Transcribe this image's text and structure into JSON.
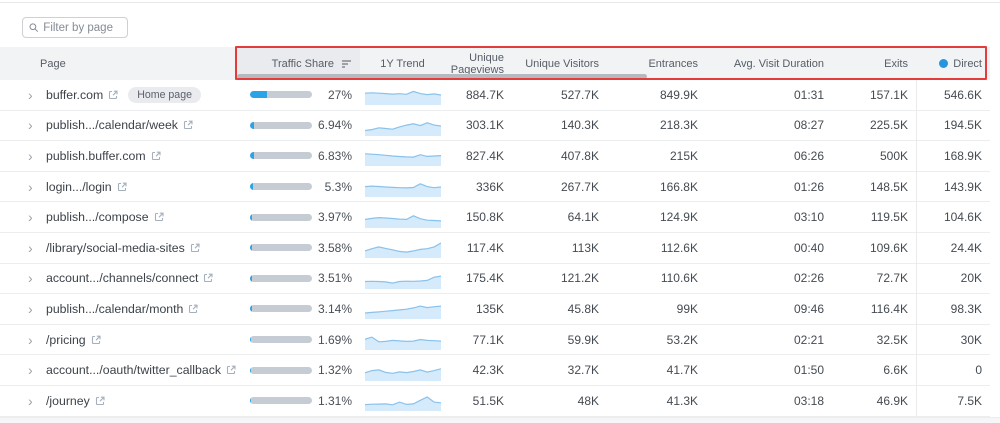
{
  "filter": {
    "placeholder": "Filter by page"
  },
  "columns": {
    "page": "Page",
    "traffic_share": "Traffic Share",
    "trend": "1Y Trend",
    "unique_pageviews": "Unique Pageviews",
    "unique_visitors": "Unique Visitors",
    "entrances": "Entrances",
    "avg_visit_duration": "Avg. Visit Duration",
    "exits": "Exits",
    "direct": "Direct"
  },
  "colors": {
    "accent_blue": "#2aa3e8",
    "direct_dot": "#2596dd",
    "highlight_red": "#e63b3b",
    "bar_track": "#c6ccd4",
    "spark_area": "#d5eafa",
    "spark_line": "#8ac2ec"
  },
  "icons": {
    "search": "search-icon",
    "sort": "sort-icon",
    "external_link": "external-link-icon",
    "chevron": "chevron-right-icon"
  },
  "rows": [
    {
      "page": "buffer.com",
      "badge": "Home page",
      "traffic_share_pct": "27%",
      "traffic_share_value": 27,
      "trend": [
        60,
        62,
        60,
        58,
        55,
        57,
        54,
        70,
        58,
        52,
        56,
        50
      ],
      "unique_pageviews": "884.7K",
      "unique_visitors": "527.7K",
      "entrances": "849.9K",
      "avg_visit_duration": "01:31",
      "exits": "157.1K",
      "direct": "546.6K"
    },
    {
      "page": "publish.../calendar/week",
      "badge": null,
      "traffic_share_pct": "6.94%",
      "traffic_share_value": 6.94,
      "trend": [
        25,
        30,
        40,
        36,
        32,
        45,
        55,
        62,
        52,
        68,
        55,
        50
      ],
      "unique_pageviews": "303.1K",
      "unique_visitors": "140.3K",
      "entrances": "218.3K",
      "avg_visit_duration": "08:27",
      "exits": "225.5K",
      "direct": "194.5K"
    },
    {
      "page": "publish.buffer.com",
      "badge": null,
      "traffic_share_pct": "6.83%",
      "traffic_share_value": 6.83,
      "trend": [
        62,
        60,
        57,
        54,
        50,
        47,
        45,
        44,
        57,
        48,
        50,
        52
      ],
      "unique_pageviews": "827.4K",
      "unique_visitors": "407.8K",
      "entrances": "215K",
      "avg_visit_duration": "06:26",
      "exits": "500K",
      "direct": "168.9K"
    },
    {
      "page": "login.../login",
      "badge": null,
      "traffic_share_pct": "5.3%",
      "traffic_share_value": 5.3,
      "trend": [
        52,
        55,
        53,
        50,
        48,
        46,
        45,
        47,
        68,
        52,
        46,
        50
      ],
      "unique_pageviews": "336K",
      "unique_visitors": "267.7K",
      "entrances": "166.8K",
      "avg_visit_duration": "01:26",
      "exits": "148.5K",
      "direct": "143.9K"
    },
    {
      "page": "publish.../compose",
      "badge": null,
      "traffic_share_pct": "3.97%",
      "traffic_share_value": 3.97,
      "trend": [
        42,
        48,
        52,
        50,
        47,
        44,
        42,
        62,
        46,
        38,
        36,
        34
      ],
      "unique_pageviews": "150.8K",
      "unique_visitors": "64.1K",
      "entrances": "124.9K",
      "avg_visit_duration": "03:10",
      "exits": "119.5K",
      "direct": "104.6K"
    },
    {
      "page": "/library/social-media-sites",
      "badge": null,
      "traffic_share_pct": "3.58%",
      "traffic_share_value": 3.58,
      "trend": [
        34,
        46,
        56,
        48,
        40,
        31,
        27,
        34,
        42,
        46,
        56,
        78
      ],
      "unique_pageviews": "117.4K",
      "unique_visitors": "113K",
      "entrances": "112.6K",
      "avg_visit_duration": "00:40",
      "exits": "109.6K",
      "direct": "24.4K"
    },
    {
      "page": "account.../channels/connect",
      "badge": null,
      "traffic_share_pct": "3.51%",
      "traffic_share_value": 3.51,
      "trend": [
        36,
        37,
        36,
        34,
        27,
        36,
        38,
        37,
        39,
        42,
        60,
        66
      ],
      "unique_pageviews": "175.4K",
      "unique_visitors": "121.2K",
      "entrances": "110.6K",
      "avg_visit_duration": "02:26",
      "exits": "72.7K",
      "direct": "20K"
    },
    {
      "page": "publish.../calendar/month",
      "badge": null,
      "traffic_share_pct": "3.14%",
      "traffic_share_value": 3.14,
      "trend": [
        28,
        31,
        34,
        38,
        41,
        45,
        49,
        56,
        66,
        58,
        63,
        66
      ],
      "unique_pageviews": "135K",
      "unique_visitors": "45.8K",
      "entrances": "99K",
      "avg_visit_duration": "09:46",
      "exits": "116.4K",
      "direct": "98.3K"
    },
    {
      "page": "/pricing",
      "badge": null,
      "traffic_share_pct": "1.69%",
      "traffic_share_value": 1.69,
      "trend": [
        54,
        66,
        40,
        42,
        48,
        45,
        42,
        44,
        53,
        48,
        46,
        44
      ],
      "unique_pageviews": "77.1K",
      "unique_visitors": "59.9K",
      "entrances": "53.2K",
      "avg_visit_duration": "02:21",
      "exits": "32.5K",
      "direct": "30K"
    },
    {
      "page": "account.../oauth/twitter_callback",
      "badge": null,
      "traffic_share_pct": "1.32%",
      "traffic_share_value": 1.32,
      "trend": [
        40,
        52,
        56,
        42,
        37,
        45,
        41,
        47,
        56,
        44,
        52,
        62
      ],
      "unique_pageviews": "42.3K",
      "unique_visitors": "32.7K",
      "entrances": "41.7K",
      "avg_visit_duration": "01:50",
      "exits": "6.6K",
      "direct": "0"
    },
    {
      "page": "/journey",
      "badge": null,
      "traffic_share_pct": "1.31%",
      "traffic_share_value": 1.31,
      "trend": [
        30,
        32,
        33,
        34,
        29,
        44,
        31,
        34,
        54,
        72,
        44,
        40
      ],
      "unique_pageviews": "51.5K",
      "unique_visitors": "48K",
      "entrances": "41.3K",
      "avg_visit_duration": "03:18",
      "exits": "46.9K",
      "direct": "7.5K"
    }
  ]
}
